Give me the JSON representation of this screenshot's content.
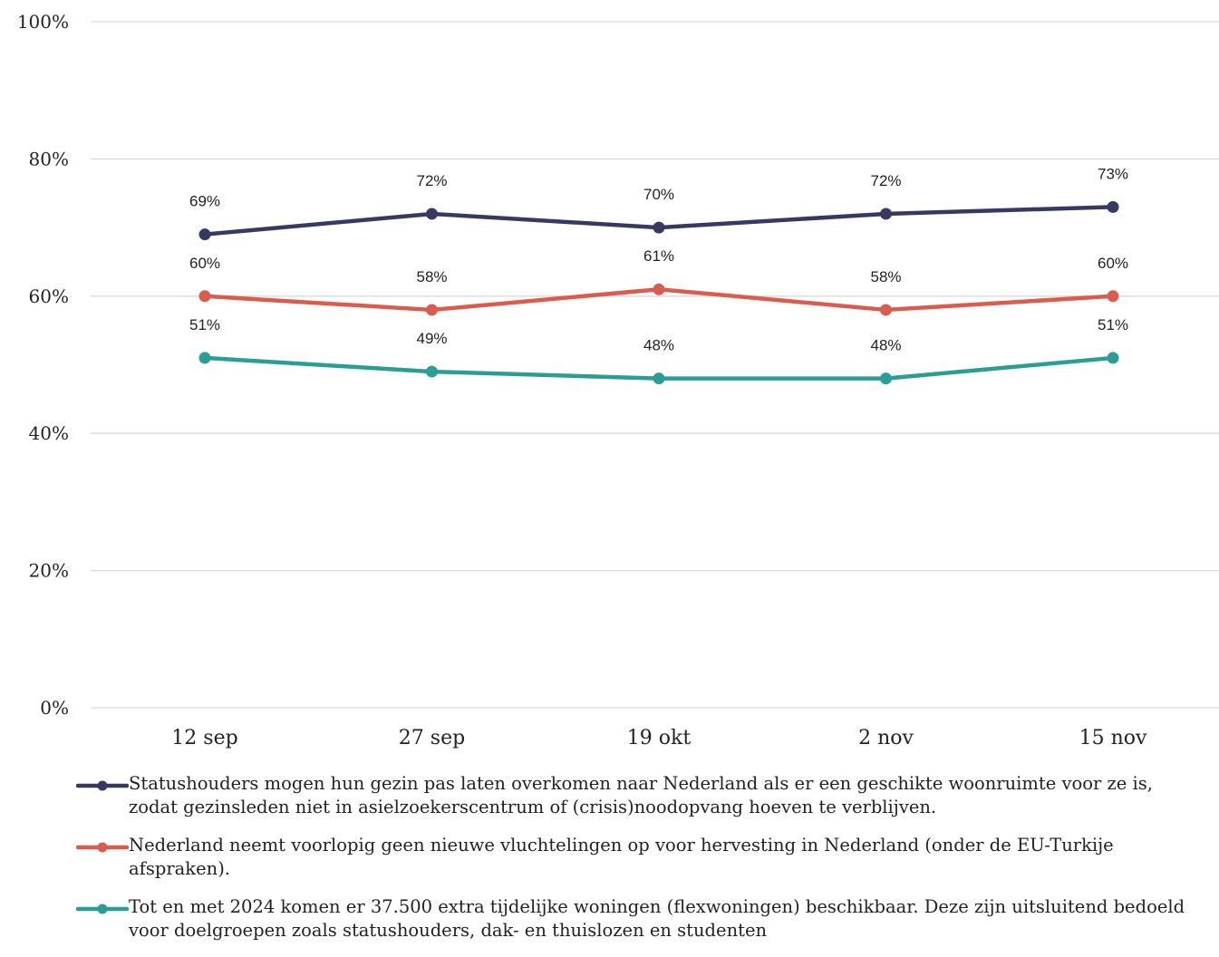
{
  "chart_data": {
    "type": "line",
    "categories": [
      "12 sep",
      "27 sep",
      "19 okt",
      "2 nov",
      "15 nov"
    ],
    "ylim": [
      0,
      100
    ],
    "yticks": [
      "0%",
      "20%",
      "40%",
      "60%",
      "80%",
      "100%"
    ],
    "ytick_values": [
      0,
      20,
      40,
      60,
      80,
      100
    ],
    "grid": true,
    "legend_position": "bottom",
    "series": [
      {
        "name": "Statushouders mogen hun gezin pas laten overkomen naar Nederland als er een geschikte woonruimte voor ze is, zodat gezinsleden niet in asielzoekerscentrum of (crisis)noodopvang hoeven te verblijven.",
        "values": [
          69,
          72,
          70,
          72,
          73
        ],
        "labels": [
          "69%",
          "72%",
          "70%",
          "72%",
          "73%"
        ],
        "color": "#363a63"
      },
      {
        "name": "Nederland neemt voorlopig geen nieuwe vluchtelingen op voor hervesting in Nederland (onder de EU-Turkije afspraken).",
        "values": [
          60,
          58,
          61,
          58,
          60
        ],
        "labels": [
          "60%",
          "58%",
          "61%",
          "58%",
          "60%"
        ],
        "color": "#db5c4f"
      },
      {
        "name": "Tot en met 2024 komen er 37.500 extra tijdelijke woningen (flexwoningen) beschikbaar. Deze zijn uitsluitend bedoeld voor doelgroepen zoals statushouders, dak- en thuislozen en studenten",
        "values": [
          51,
          49,
          48,
          48,
          51
        ],
        "labels": [
          "51%",
          "49%",
          "48%",
          "48%",
          "51%"
        ],
        "color": "#2a9d94"
      }
    ]
  }
}
